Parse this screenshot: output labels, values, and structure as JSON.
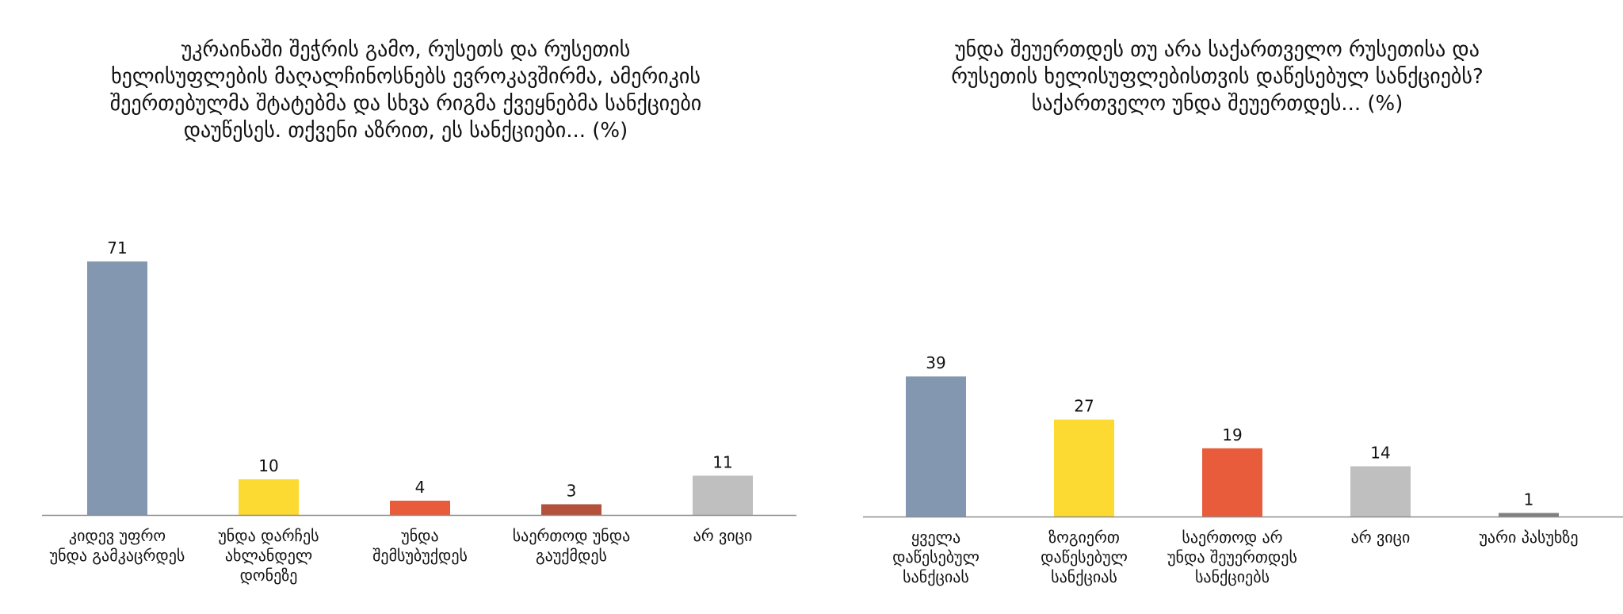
{
  "chart_data": [
    {
      "type": "bar",
      "title": "უკრაინაში შეჭრის გამო, რუსეთს და რუსეთის\nხელისუფლების მაღალჩინოსნებს ევროკავშირმა, ამერიკის\nშეერთებულმა შტატებმა და სხვა რიგმა ქვეყნებმა სანქციები\nდაუწესეს. თქვენი აზრით, ეს სანქციები... (%)",
      "categories": [
        "კიდევ უფრო\nუნდა გამკაცრდეს",
        "უნდა დარჩეს\nახლანდელ\nდონეზე",
        "უნდა\nშემსუბუქდეს",
        "საერთოდ უნდა\nგაუქმდეს",
        "არ ვიცი"
      ],
      "values": [
        71,
        10,
        4,
        3,
        11
      ],
      "colors": [
        "#8497b0",
        "#fcda32",
        "#e85c3c",
        "#b3513a",
        "#bfbfbf"
      ],
      "ylim": [
        0,
        75
      ],
      "grid": false,
      "legend": "none"
    },
    {
      "type": "bar",
      "title": "უნდა შეუერთდეს თუ არა საქართველო რუსეთისა და\nრუსეთის ხელისუფლებისთვის დაწესებულ სანქციებს?\nსაქართველო უნდა შეუერთდეს... (%)",
      "categories": [
        "ყველა\nდაწესებულ\nსანქციას",
        "ზოგიერთ\nდაწესებულ\nსანქციას",
        "საერთოდ არ\nუნდა შეუერთდეს\nსანქციებს",
        "არ ვიცი",
        "უარი პასუხზე"
      ],
      "values": [
        39,
        27,
        19,
        14,
        1
      ],
      "colors": [
        "#8497b0",
        "#fcda32",
        "#e85c3c",
        "#bfbfbf",
        "#808080"
      ],
      "ylim": [
        0,
        75
      ],
      "grid": false,
      "legend": "none"
    }
  ]
}
